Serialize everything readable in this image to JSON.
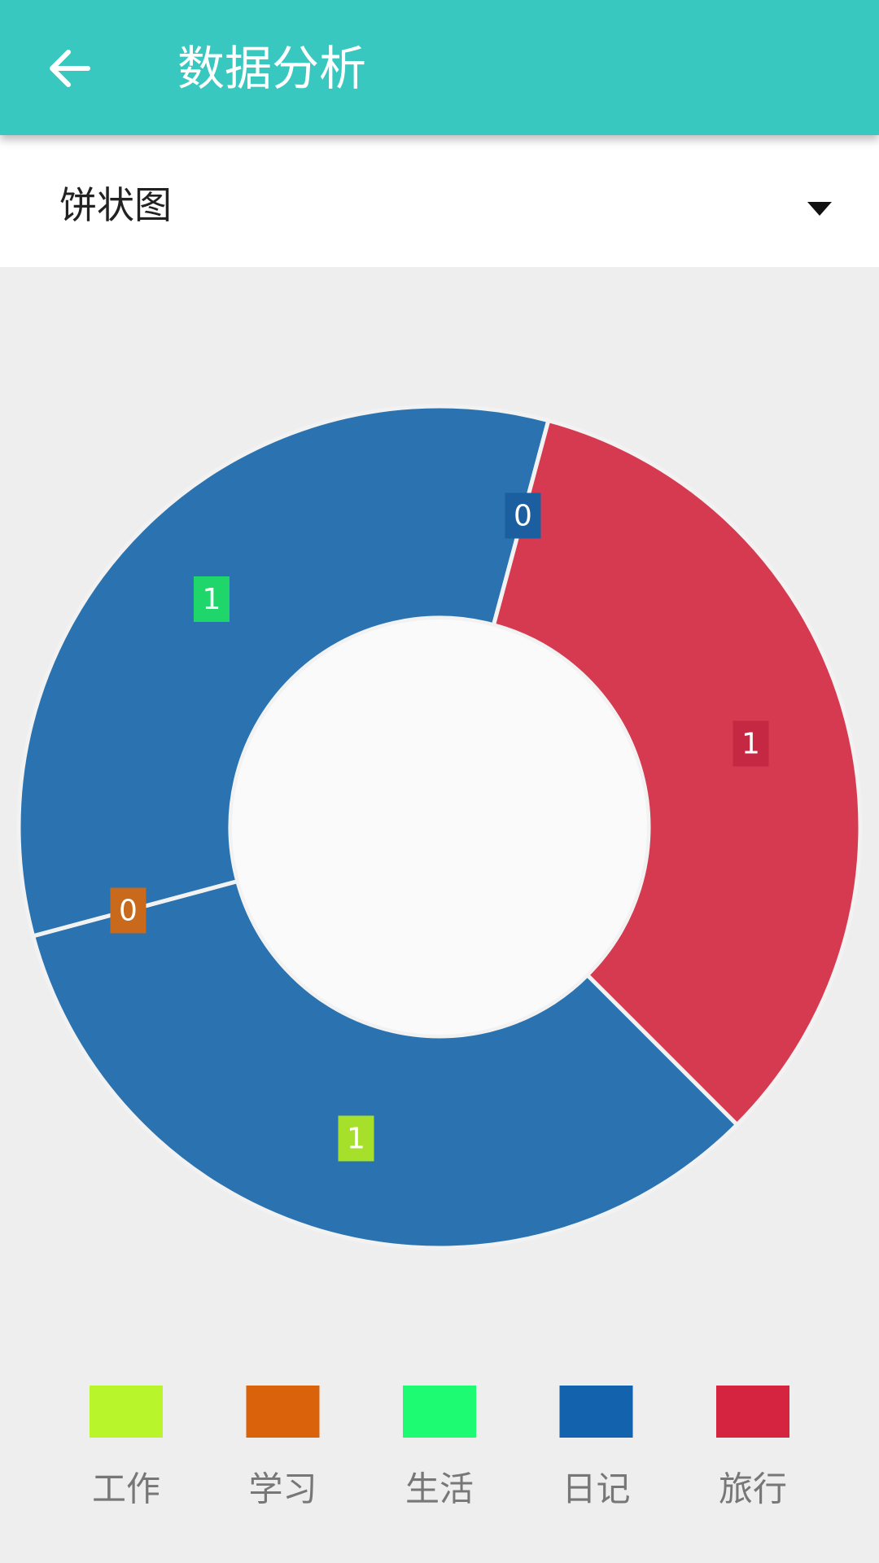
{
  "header": {
    "title": "数据分析"
  },
  "selector": {
    "label": "饼状图"
  },
  "chart_data": {
    "type": "donut",
    "categories": [
      "工作",
      "学习",
      "生活",
      "日记",
      "旅行"
    ],
    "values": [
      1,
      0,
      1,
      0,
      1
    ],
    "colors": [
      "#b8f52a",
      "#d9620a",
      "#1dfb72",
      "#1362ad",
      "#d5243f"
    ],
    "slice_colors": [
      "#2a72b0",
      "#2a72b0",
      "#2a72b0",
      "#2a72b0",
      "#d63a51"
    ],
    "label_colors": [
      "#a6e02a",
      "#c9691c",
      "#1ed66a",
      "#1c5fa0",
      "#c42843"
    ],
    "legend": "bottom"
  }
}
